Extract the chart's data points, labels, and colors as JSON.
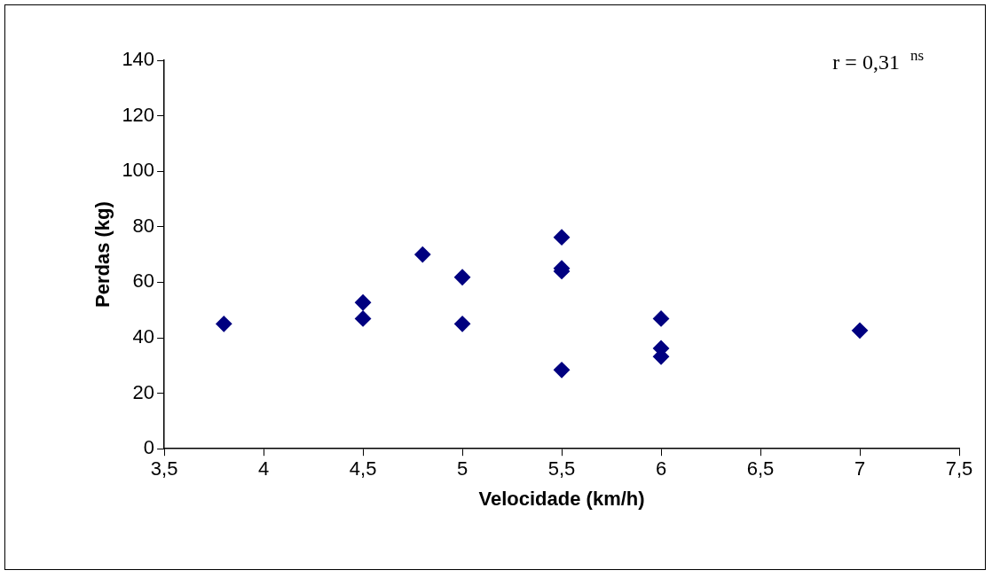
{
  "chart_data": {
    "type": "scatter",
    "xlabel": "Velocidade (km/h)",
    "ylabel": "Perdas (kg)",
    "annotations": [
      "r = 0,31 $^{ns}$"
    ],
    "x": [
      3.8,
      4.5,
      4.5,
      4.8,
      5,
      5,
      5.5,
      5.5,
      5.5,
      5.5,
      6,
      6,
      6,
      7
    ],
    "series": [
      {
        "color": "#000080",
        "values": [
          45,
          52.7,
          46.9,
          70,
          61.8,
          45,
          76.2,
          65,
          64,
          28.4,
          46.9,
          36.2,
          33.2,
          42.6
        ]
      }
    ],
    "marker": "diamond",
    "legend": false,
    "grid": false,
    "xlim": [
      3.5,
      7.5
    ],
    "xticks": [
      {
        "value": 3.5,
        "label": "3,5"
      },
      4,
      {
        "value": 4.5,
        "label": "4,5"
      },
      5,
      {
        "value": 5.5,
        "label": "5,5"
      },
      6,
      {
        "value": 6.5,
        "label": "6,5"
      },
      7,
      {
        "value": 7.5,
        "label": "7,5"
      }
    ],
    "ylim": [
      0,
      140
    ],
    "yticks": [
      0,
      20,
      40,
      60,
      80,
      100,
      120,
      140
    ]
  }
}
